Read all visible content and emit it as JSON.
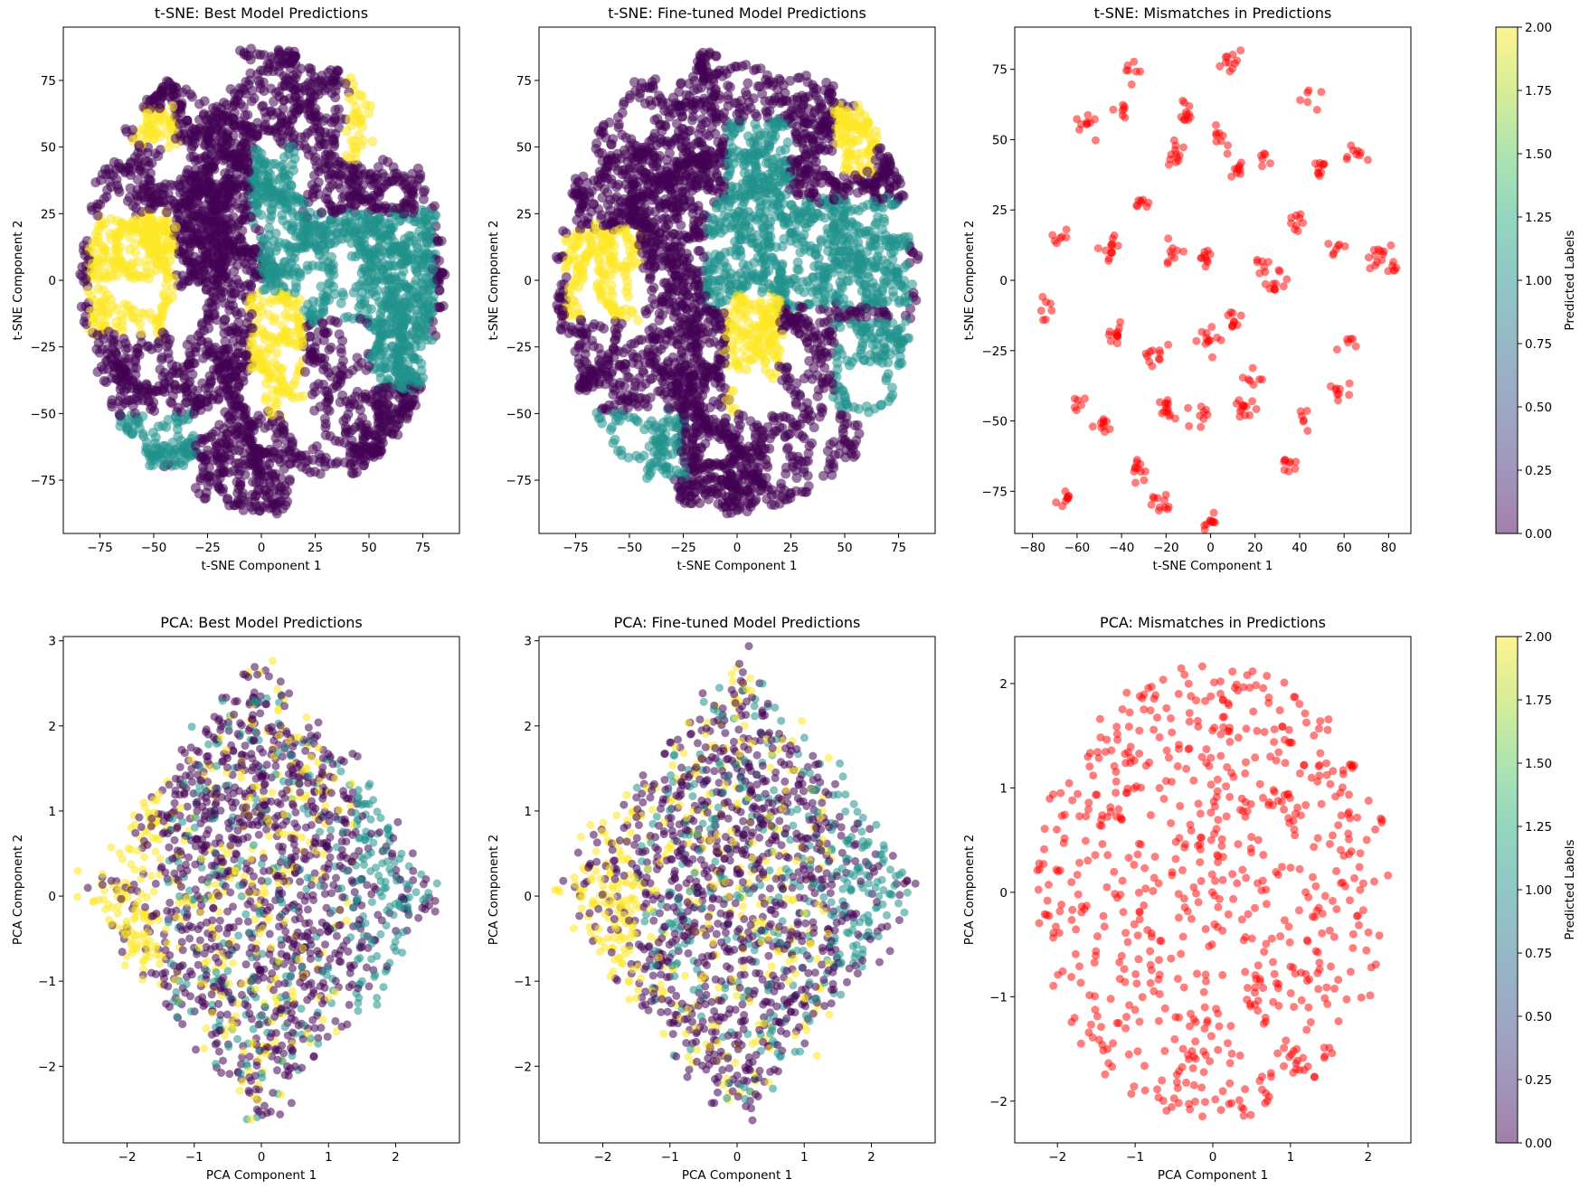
{
  "figure": {
    "colorbars": [
      {
        "label": "Predicted Labels",
        "range": [
          0,
          2
        ],
        "ticks": [
          "0.00",
          "0.25",
          "0.50",
          "0.75",
          "1.00",
          "1.25",
          "1.50",
          "1.75",
          "2.00"
        ],
        "colormap": "viridis",
        "alpha": 0.5
      },
      {
        "label": "Predicted Labels",
        "range": [
          0,
          2
        ],
        "ticks": [
          "0.00",
          "0.25",
          "0.50",
          "0.75",
          "1.00",
          "1.25",
          "1.50",
          "1.75",
          "2.00"
        ],
        "colormap": "viridis",
        "alpha": 0.5
      }
    ]
  },
  "chart_data": [
    {
      "type": "scatter",
      "method": "tsne",
      "kind": "labels",
      "seed": 11,
      "title": "t-SNE: Best Model Predictions",
      "xlabel": "t-SNE Component 1",
      "ylabel": "t-SNE Component 2",
      "xlim": [
        -92,
        92
      ],
      "ylim": [
        -95,
        95
      ],
      "xticks": [
        -75,
        -50,
        -25,
        0,
        25,
        50,
        75
      ],
      "yticks": [
        -75,
        -50,
        -25,
        0,
        25,
        50,
        75
      ],
      "class_colors": [
        "#440154",
        "#21918c",
        "#fde725"
      ],
      "label_regions": [
        {
          "label": 2,
          "x_range": [
            -80,
            -40
          ],
          "y_range": [
            -20,
            25
          ]
        },
        {
          "label": 2,
          "x_range": [
            -5,
            20
          ],
          "y_range": [
            -50,
            -5
          ]
        },
        {
          "label": 2,
          "x_range": [
            40,
            70
          ],
          "y_range": [
            45,
            75
          ]
        },
        {
          "label": 2,
          "x_range": [
            -60,
            -40
          ],
          "y_range": [
            50,
            65
          ]
        },
        {
          "label": 1,
          "x_range": [
            0,
            80
          ],
          "y_range": [
            -15,
            25
          ]
        },
        {
          "label": 1,
          "x_range": [
            -5,
            20
          ],
          "y_range": [
            20,
            50
          ]
        },
        {
          "label": 1,
          "x_range": [
            50,
            80
          ],
          "y_range": [
            -40,
            -15
          ]
        },
        {
          "label": 1,
          "x_range": [
            -70,
            -30
          ],
          "y_range": [
            -70,
            -50
          ]
        },
        {
          "label": 0,
          "x_range": [
            -80,
            80
          ],
          "y_range": [
            -85,
            85
          ]
        }
      ]
    },
    {
      "type": "scatter",
      "method": "tsne",
      "kind": "labels",
      "seed": 12,
      "title": "t-SNE: Fine-tuned Model Predictions",
      "xlabel": "t-SNE Component 1",
      "ylabel": "t-SNE Component 2",
      "xlim": [
        -92,
        92
      ],
      "ylim": [
        -95,
        95
      ],
      "xticks": [
        -75,
        -50,
        -25,
        0,
        25,
        50,
        75
      ],
      "yticks": [
        -75,
        -50,
        -25,
        0,
        25,
        50,
        75
      ],
      "class_colors": [
        "#440154",
        "#21918c",
        "#fde725"
      ],
      "label_regions": [
        {
          "label": 2,
          "x_range": [
            -80,
            -45
          ],
          "y_range": [
            -15,
            20
          ]
        },
        {
          "label": 2,
          "x_range": [
            -5,
            20
          ],
          "y_range": [
            -50,
            -5
          ]
        },
        {
          "label": 2,
          "x_range": [
            45,
            65
          ],
          "y_range": [
            40,
            65
          ]
        },
        {
          "label": 1,
          "x_range": [
            -15,
            80
          ],
          "y_range": [
            -10,
            30
          ]
        },
        {
          "label": 1,
          "x_range": [
            -5,
            25
          ],
          "y_range": [
            25,
            60
          ]
        },
        {
          "label": 1,
          "x_range": [
            45,
            80
          ],
          "y_range": [
            -50,
            -15
          ]
        },
        {
          "label": 1,
          "x_range": [
            -70,
            -25
          ],
          "y_range": [
            -75,
            -50
          ]
        },
        {
          "label": 0,
          "x_range": [
            -80,
            80
          ],
          "y_range": [
            -85,
            85
          ]
        }
      ]
    },
    {
      "type": "scatter",
      "method": "tsne",
      "kind": "mismatch",
      "seed": 13,
      "title": "t-SNE: Mismatches in Predictions",
      "xlabel": "t-SNE Component 1",
      "ylabel": "t-SNE Component 2",
      "xlim": [
        -88,
        90
      ],
      "ylim": [
        -90,
        90
      ],
      "xticks": [
        -80,
        -60,
        -40,
        -20,
        0,
        20,
        40,
        60,
        80
      ],
      "yticks": [
        -75,
        -50,
        -25,
        0,
        25,
        50,
        75
      ],
      "point_color": "#ff0000",
      "clusters": [
        [
          -75,
          -10
        ],
        [
          -68,
          15
        ],
        [
          -60,
          -45
        ],
        [
          -55,
          55
        ],
        [
          -45,
          12
        ],
        [
          -42,
          -20
        ],
        [
          -38,
          60
        ],
        [
          -35,
          74
        ],
        [
          -33,
          -68
        ],
        [
          -30,
          28
        ],
        [
          -25,
          -28
        ],
        [
          -22,
          -80
        ],
        [
          -20,
          -45
        ],
        [
          -18,
          10
        ],
        [
          -15,
          45
        ],
        [
          -10,
          60
        ],
        [
          -5,
          -48
        ],
        [
          -2,
          8
        ],
        [
          0,
          -85
        ],
        [
          5,
          50
        ],
        [
          8,
          78
        ],
        [
          10,
          -15
        ],
        [
          12,
          40
        ],
        [
          15,
          -45
        ],
        [
          20,
          -35
        ],
        [
          22,
          5
        ],
        [
          25,
          42
        ],
        [
          30,
          -2
        ],
        [
          35,
          -65
        ],
        [
          38,
          22
        ],
        [
          42,
          -50
        ],
        [
          46,
          65
        ],
        [
          50,
          40
        ],
        [
          55,
          12
        ],
        [
          58,
          -40
        ],
        [
          62,
          -20
        ],
        [
          65,
          45
        ],
        [
          75,
          8
        ],
        [
          -48,
          -52
        ],
        [
          -65,
          -78
        ],
        [
          0,
          -20
        ],
        [
          82,
          5
        ]
      ]
    },
    {
      "type": "scatter",
      "method": "pca",
      "kind": "labels",
      "seed": 21,
      "title": "PCA: Best Model Predictions",
      "xlabel": "PCA Component 1",
      "ylabel": "PCA Component 2",
      "xlim": [
        -2.95,
        2.95
      ],
      "ylim": [
        -2.9,
        3.05
      ],
      "xticks": [
        -2,
        -1,
        0,
        1,
        2
      ],
      "yticks": [
        -2,
        -1,
        0,
        1,
        2,
        3
      ],
      "class_colors": [
        "#440154",
        "#21918c",
        "#fde725"
      ]
    },
    {
      "type": "scatter",
      "method": "pca",
      "kind": "labels",
      "seed": 22,
      "title": "PCA: Fine-tuned Model Predictions",
      "xlabel": "PCA Component 1",
      "ylabel": "PCA Component 2",
      "xlim": [
        -2.95,
        2.95
      ],
      "ylim": [
        -2.9,
        3.05
      ],
      "xticks": [
        -2,
        -1,
        0,
        1,
        2
      ],
      "yticks": [
        -2,
        -1,
        0,
        1,
        2,
        3
      ],
      "class_colors": [
        "#440154",
        "#21918c",
        "#fde725"
      ]
    },
    {
      "type": "scatter",
      "method": "pca",
      "kind": "mismatch",
      "seed": 23,
      "title": "PCA: Mismatches in Predictions",
      "xlabel": "PCA Component 1",
      "ylabel": "PCA Component 2",
      "xlim": [
        -2.55,
        2.55
      ],
      "ylim": [
        -2.4,
        2.45
      ],
      "xticks": [
        -2,
        -1,
        0,
        1,
        2
      ],
      "yticks": [
        -2,
        -1,
        0,
        1,
        2
      ],
      "point_color": "#ff0000"
    }
  ]
}
